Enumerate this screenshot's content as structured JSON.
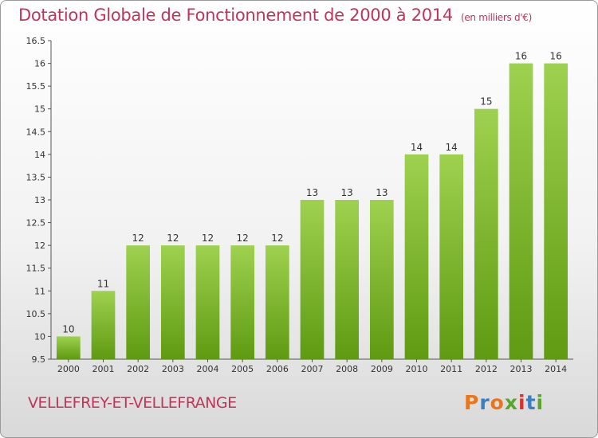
{
  "title": "Dotation Globale de Fonctionnement de 2000 à 2014",
  "subtitle": "(en milliers d'€)",
  "commune": "VELLEFREY-ET-VELLEFRANGE",
  "logo": {
    "letters": [
      "P",
      "r",
      "o",
      "x",
      "i",
      "t",
      "i"
    ],
    "colors": [
      "#e8761e",
      "#3a7fc2",
      "#e8761e",
      "#5aa52c",
      "#d9342b",
      "#3a7fc2",
      "#5aa52c"
    ]
  },
  "colors": {
    "bar_top": "#9ed14f",
    "bar_bottom": "#5f9a12",
    "title": "#c0345a"
  },
  "chart_data": {
    "type": "bar",
    "categories": [
      "2000",
      "2001",
      "2002",
      "2003",
      "2004",
      "2005",
      "2006",
      "2007",
      "2008",
      "2009",
      "2010",
      "2011",
      "2012",
      "2013",
      "2014"
    ],
    "values": [
      10,
      11,
      12,
      12,
      12,
      12,
      12,
      13,
      13,
      13,
      14,
      14,
      15,
      16,
      16
    ],
    "data_labels": [
      "10",
      "11",
      "12",
      "12",
      "12",
      "12",
      "12",
      "13",
      "13",
      "13",
      "14",
      "14",
      "15",
      "16",
      "16"
    ],
    "title": "Dotation Globale de Fonctionnement de 2000 à 2014",
    "ylim": [
      9.5,
      16.5
    ],
    "yticks": [
      9.5,
      10,
      10.5,
      11,
      11.5,
      12,
      12.5,
      13,
      13.5,
      14,
      14.5,
      15,
      15.5,
      16,
      16.5
    ],
    "ytick_labels": [
      "9.5",
      "10",
      "10.5",
      "11",
      "11.5",
      "12",
      "12.5",
      "13",
      "13.5",
      "14",
      "14.5",
      "15",
      "15.5",
      "16",
      "16.5"
    ],
    "grid": false,
    "legend": "none"
  }
}
